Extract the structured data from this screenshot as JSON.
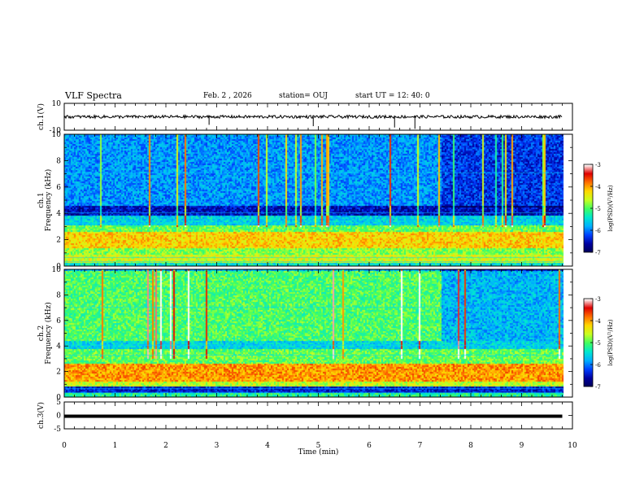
{
  "header": {
    "title": "VLF Spectra",
    "date": "Feb. 2  , 2026",
    "station": "station= OUJ",
    "start": "start  UT  =   12: 40: 0"
  },
  "colors": {
    "colormap": [
      "#000055",
      "#0000a0",
      "#0040ff",
      "#00b0ff",
      "#00e8d0",
      "#40ff60",
      "#c8ff20",
      "#ffd800",
      "#ff7000",
      "#e00000",
      "#ffffff"
    ]
  },
  "chart_data": [
    {
      "type": "line",
      "name": "ch1-waveform",
      "ylabel": "ch.1(V)",
      "ylim": [
        -10,
        10
      ],
      "yticks": [
        "10",
        "-10"
      ],
      "baseline": 0,
      "xlim": [
        0,
        10
      ],
      "data_end_min": 9.8
    },
    {
      "type": "heatmap",
      "name": "ch1-spectrogram",
      "ylabel": [
        "ch.1",
        "Frequency (kHz)"
      ],
      "ylim": [
        0,
        10
      ],
      "yticks": [
        "0",
        "2",
        "4",
        "6",
        "8",
        "10"
      ],
      "xlim": [
        0,
        10
      ],
      "data_end_min": 9.8,
      "colorbar": {
        "label": "log(PSD)(V²/Hz)",
        "range": [
          -7,
          -3
        ],
        "ticks": [
          "-3",
          "-4",
          "-5",
          "-6",
          "-7"
        ]
      },
      "bands_khz": [
        {
          "from": 0.0,
          "to": 0.3,
          "level": 0.4
        },
        {
          "from": 0.3,
          "to": 0.9,
          "level": 0.62
        },
        {
          "from": 0.9,
          "to": 1.4,
          "level": 0.55
        },
        {
          "from": 1.4,
          "to": 2.6,
          "level": 0.7
        },
        {
          "from": 2.6,
          "to": 3.2,
          "level": 0.52
        },
        {
          "from": 3.2,
          "to": 3.9,
          "level": 0.36
        },
        {
          "from": 3.9,
          "to": 4.6,
          "level": 0.12
        },
        {
          "from": 4.6,
          "to": 10.0,
          "level": 0.28
        }
      ]
    },
    {
      "type": "heatmap",
      "name": "ch2-spectrogram",
      "ylabel": [
        "ch.2",
        "Frequency (kHz)"
      ],
      "ylim": [
        0,
        10
      ],
      "yticks": [
        "0",
        "2",
        "4",
        "6",
        "8",
        "10"
      ],
      "xlim": [
        0,
        10
      ],
      "data_end_min": 9.8,
      "colorbar": {
        "label": "log(PSD)(V²/Hz)",
        "range": [
          -7,
          -3
        ],
        "ticks": [
          "-3",
          "-4",
          "-5",
          "-6",
          "-7"
        ]
      },
      "bands_khz": [
        {
          "from": 0.0,
          "to": 0.4,
          "level": 0.45
        },
        {
          "from": 0.4,
          "to": 0.9,
          "level": 0.15
        },
        {
          "from": 0.9,
          "to": 1.3,
          "level": 0.6
        },
        {
          "from": 1.3,
          "to": 2.7,
          "level": 0.76
        },
        {
          "from": 2.7,
          "to": 3.8,
          "level": 0.52
        },
        {
          "from": 3.8,
          "to": 4.4,
          "level": 0.36
        },
        {
          "from": 4.4,
          "to": 10.0,
          "level": 0.5
        }
      ]
    },
    {
      "type": "line",
      "name": "ch3-waveform",
      "ylabel": "ch.3(V)",
      "ylim": [
        -5,
        5
      ],
      "yticks": [
        "5",
        "0",
        "-5"
      ],
      "baseline": 0,
      "xlim": [
        0,
        10
      ],
      "data_end_min": 9.8
    }
  ],
  "xaxis": {
    "label": "Time (min)",
    "ticks": [
      "0",
      "1",
      "2",
      "3",
      "4",
      "5",
      "6",
      "7",
      "8",
      "9",
      "10"
    ]
  }
}
